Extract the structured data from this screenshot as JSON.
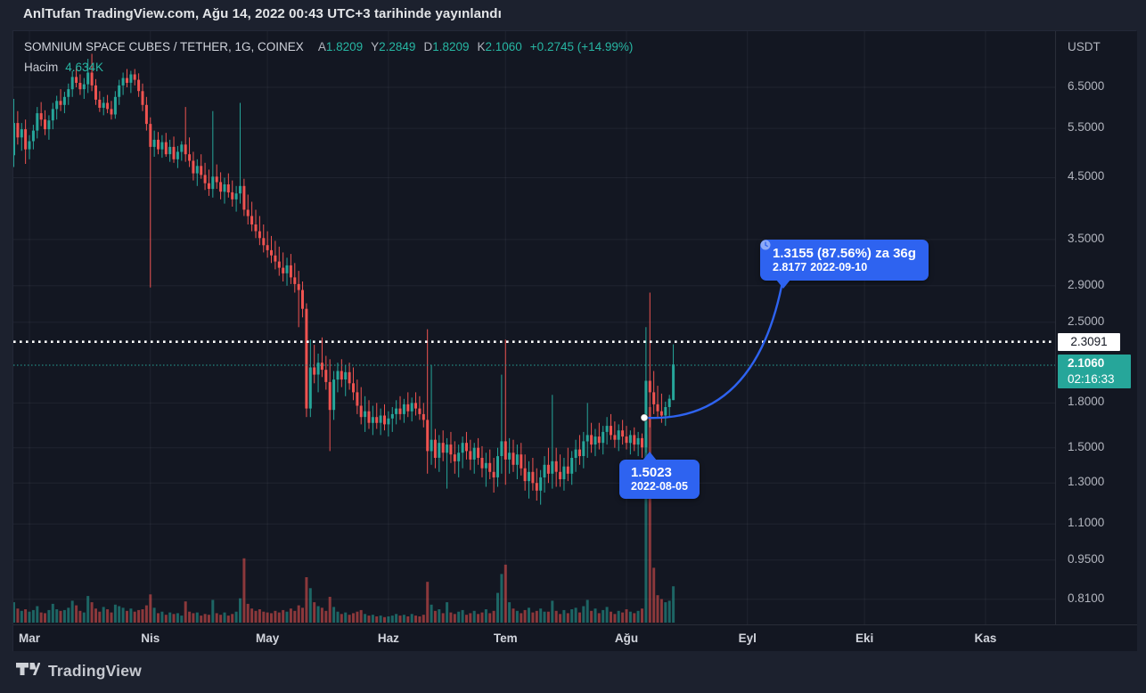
{
  "page": {
    "watermark": "AnlTufan TradingView.com, Ağu 14, 2022 00:43 UTC+3 tarihinde yayınlandı"
  },
  "colors": {
    "up": "#26a69a",
    "down": "#ef5350",
    "vol_up": "rgba(38,166,154,0.55)",
    "vol_down": "rgba(239,83,80,0.55)",
    "accent_blue": "#2e63f0",
    "grid": "rgba(240,243,250,0.06)",
    "chart_bg": "#131722",
    "outer_bg": "#1c212e",
    "alert_line": "#ffffff",
    "current_line": "#26a69a",
    "axis_text": "#b2b5be"
  },
  "legend": {
    "symbol": "SOMNIUM SPACE CUBES / TETHER, 1G, COINEX",
    "o_label": "A",
    "o": "1.8209",
    "h_label": "Y",
    "h": "2.2849",
    "l_label": "D",
    "l": "1.8209",
    "c_label": "K",
    "c": "2.1060",
    "change": "+0.2745 (+14.99%)",
    "volume_label": "Hacim",
    "volume_value": "4.634K"
  },
  "price_axis": {
    "unit_label": "USDT",
    "ticks": [
      "6.5000",
      "5.5000",
      "4.5000",
      "3.5000",
      "2.9000",
      "2.5000",
      "1.8000",
      "1.5000",
      "1.3000",
      "1.1000",
      "0.9500",
      "0.8100"
    ],
    "alert_badge": "2.3091",
    "current_badge": "2.1060",
    "countdown": "02:16:33"
  },
  "time_axis": {
    "months": [
      "Mar",
      "Nis",
      "May",
      "Haz",
      "Tem",
      "Ağu",
      "Eyl",
      "Eki",
      "Kas"
    ]
  },
  "annotations": {
    "alert_price": 2.3091,
    "current_price": 2.106,
    "target_callout": {
      "line1": "1.3155 (87.56%) za 36g",
      "price": "2.8177",
      "date": "2022-09-10"
    },
    "start_callout": {
      "price": "1.5023",
      "date": "2022-08-05"
    },
    "arrow_points": [
      {
        "price": 1.5023,
        "date": "2022-08-05"
      },
      {
        "price": 2.8177,
        "date": "2022-09-10"
      }
    ]
  },
  "footer": {
    "brand": "TradingView"
  },
  "chart_data": {
    "type": "candlestick+volume",
    "symbol": "SOMNIUM SPACE CUBES / TETHER",
    "interval": "1G",
    "exchange": "COINEX",
    "price_scale": "log",
    "ylim": [
      0.75,
      7.5
    ],
    "volume_max": 27500,
    "start_date": "2022-02-25",
    "end_date": "2022-08-13",
    "ohlc_format": "[open, high, low, close, volume]",
    "candles": [
      [
        4.93,
        6.2,
        4.7,
        5.62,
        2600
      ],
      [
        5.62,
        5.9,
        5.15,
        5.3,
        1800
      ],
      [
        5.3,
        5.62,
        5.02,
        5.48,
        1500
      ],
      [
        5.48,
        5.7,
        4.76,
        5.05,
        1700
      ],
      [
        5.05,
        5.35,
        4.85,
        5.22,
        1400
      ],
      [
        5.22,
        5.58,
        5.05,
        5.45,
        1600
      ],
      [
        5.45,
        6.0,
        5.28,
        5.85,
        2100
      ],
      [
        5.85,
        6.12,
        5.55,
        5.7,
        1300
      ],
      [
        5.7,
        5.92,
        5.35,
        5.48,
        1200
      ],
      [
        5.48,
        5.8,
        5.25,
        5.68,
        1600
      ],
      [
        5.68,
        6.1,
        5.48,
        5.95,
        2400
      ],
      [
        5.95,
        6.28,
        5.7,
        6.15,
        1700
      ],
      [
        6.15,
        6.45,
        5.9,
        6.05,
        1500
      ],
      [
        6.05,
        6.38,
        5.85,
        6.25,
        1600
      ],
      [
        6.25,
        6.6,
        6.05,
        6.45,
        1900
      ],
      [
        6.45,
        6.95,
        6.25,
        6.78,
        2800
      ],
      [
        6.78,
        7.05,
        6.5,
        6.62,
        2200
      ],
      [
        6.62,
        6.85,
        6.3,
        6.45,
        1500
      ],
      [
        6.45,
        6.75,
        6.2,
        6.58,
        1300
      ],
      [
        6.58,
        7.3,
        6.35,
        6.9,
        3400
      ],
      [
        6.9,
        7.45,
        6.4,
        6.55,
        2600
      ],
      [
        6.55,
        6.72,
        6.05,
        6.18,
        1800
      ],
      [
        6.18,
        6.4,
        5.88,
        5.98,
        1400
      ],
      [
        5.98,
        6.25,
        5.8,
        6.1,
        2000
      ],
      [
        6.1,
        6.3,
        5.85,
        5.95,
        1700
      ],
      [
        5.95,
        6.15,
        5.7,
        5.82,
        1300
      ],
      [
        5.82,
        6.4,
        5.72,
        6.25,
        2300
      ],
      [
        6.25,
        6.7,
        6.05,
        6.55,
        2100
      ],
      [
        6.55,
        6.9,
        6.3,
        6.75,
        1900
      ],
      [
        6.75,
        7.0,
        6.5,
        6.62,
        1500
      ],
      [
        6.62,
        6.95,
        6.35,
        6.85,
        1800
      ],
      [
        6.85,
        7.0,
        6.55,
        6.7,
        1400
      ],
      [
        6.7,
        6.88,
        6.25,
        6.4,
        1600
      ],
      [
        6.4,
        6.6,
        5.9,
        6.05,
        1700
      ],
      [
        6.05,
        6.25,
        5.45,
        5.6,
        2200
      ],
      [
        5.6,
        5.75,
        2.88,
        5.1,
        3600
      ],
      [
        5.1,
        5.45,
        4.9,
        5.25,
        1900
      ],
      [
        5.25,
        5.42,
        4.95,
        5.05,
        1200
      ],
      [
        5.05,
        5.35,
        4.88,
        5.2,
        1400
      ],
      [
        5.2,
        5.4,
        4.9,
        4.95,
        1000
      ],
      [
        4.95,
        5.25,
        4.8,
        5.1,
        1300
      ],
      [
        5.1,
        5.32,
        4.78,
        4.85,
        1100
      ],
      [
        4.85,
        5.12,
        4.68,
        5.0,
        1200
      ],
      [
        5.0,
        5.22,
        4.82,
        5.15,
        900
      ],
      [
        5.15,
        6.0,
        4.8,
        4.95,
        2700
      ],
      [
        4.95,
        5.3,
        4.7,
        4.82,
        1400
      ],
      [
        4.82,
        5.0,
        4.45,
        4.58,
        1200
      ],
      [
        4.58,
        4.85,
        4.35,
        4.72,
        1300
      ],
      [
        4.72,
        4.95,
        4.48,
        4.55,
        900
      ],
      [
        4.55,
        4.78,
        4.28,
        4.4,
        1100
      ],
      [
        4.4,
        4.65,
        4.18,
        4.3,
        1000
      ],
      [
        4.3,
        5.9,
        4.15,
        4.52,
        2900
      ],
      [
        4.52,
        4.75,
        4.3,
        4.42,
        1200
      ],
      [
        4.42,
        4.6,
        4.12,
        4.25,
        1000
      ],
      [
        4.25,
        4.5,
        4.05,
        4.38,
        1300
      ],
      [
        4.38,
        4.58,
        4.15,
        4.24,
        900
      ],
      [
        4.24,
        4.45,
        4.0,
        4.12,
        1100
      ],
      [
        4.12,
        4.35,
        3.92,
        4.22,
        1400
      ],
      [
        4.22,
        6.1,
        4.05,
        4.35,
        3100
      ],
      [
        4.35,
        4.48,
        3.85,
        3.95,
        8200
      ],
      [
        3.95,
        4.2,
        3.72,
        3.85,
        2400
      ],
      [
        3.85,
        4.08,
        3.62,
        3.72,
        1800
      ],
      [
        3.72,
        3.95,
        3.52,
        3.62,
        1500
      ],
      [
        3.62,
        3.85,
        3.42,
        3.52,
        1700
      ],
      [
        3.52,
        3.72,
        3.32,
        3.42,
        1400
      ],
      [
        3.42,
        3.62,
        3.25,
        3.35,
        1300
      ],
      [
        3.35,
        3.55,
        3.18,
        3.28,
        1200
      ],
      [
        3.28,
        3.48,
        3.1,
        3.2,
        1500
      ],
      [
        3.2,
        3.4,
        3.02,
        3.12,
        1300
      ],
      [
        3.12,
        3.32,
        2.95,
        3.05,
        1600
      ],
      [
        3.05,
        3.25,
        2.9,
        3.15,
        1400
      ],
      [
        3.15,
        3.3,
        2.92,
        3.0,
        1800
      ],
      [
        3.0,
        3.18,
        2.82,
        2.92,
        1500
      ],
      [
        2.92,
        3.08,
        2.45,
        2.85,
        2200
      ],
      [
        2.85,
        2.95,
        2.55,
        2.64,
        1900
      ],
      [
        2.64,
        2.7,
        1.7,
        1.76,
        5800
      ],
      [
        1.76,
        2.33,
        1.7,
        2.08,
        4400
      ],
      [
        2.08,
        2.28,
        1.95,
        2.02,
        2600
      ],
      [
        2.02,
        2.2,
        1.88,
        2.12,
        2100
      ],
      [
        2.12,
        2.35,
        2.0,
        2.06,
        1900
      ],
      [
        2.06,
        2.18,
        1.9,
        1.96,
        1500
      ],
      [
        1.96,
        2.15,
        1.48,
        1.75,
        3300
      ],
      [
        1.75,
        2.05,
        1.68,
        1.98,
        2000
      ],
      [
        1.98,
        2.12,
        1.88,
        2.05,
        1400
      ],
      [
        2.05,
        2.15,
        1.92,
        1.98,
        1100
      ],
      [
        1.98,
        2.1,
        1.85,
        2.04,
        1300
      ],
      [
        2.04,
        2.12,
        1.9,
        1.95,
        1000
      ],
      [
        1.95,
        2.08,
        1.82,
        1.88,
        1200
      ],
      [
        1.88,
        1.98,
        1.72,
        1.78,
        1400
      ],
      [
        1.78,
        1.92,
        1.65,
        1.7,
        1600
      ],
      [
        1.7,
        1.85,
        1.6,
        1.74,
        1100
      ],
      [
        1.74,
        1.82,
        1.62,
        1.66,
        900
      ],
      [
        1.66,
        1.78,
        1.58,
        1.7,
        1000
      ],
      [
        1.7,
        1.8,
        1.62,
        1.66,
        800
      ],
      [
        1.66,
        1.76,
        1.58,
        1.71,
        900
      ],
      [
        1.71,
        1.79,
        1.61,
        1.65,
        700
      ],
      [
        1.65,
        1.74,
        1.57,
        1.69,
        800
      ],
      [
        1.69,
        1.77,
        1.6,
        1.72,
        900
      ],
      [
        1.72,
        1.82,
        1.65,
        1.76,
        1100
      ],
      [
        1.76,
        1.85,
        1.68,
        1.72,
        900
      ],
      [
        1.72,
        1.83,
        1.66,
        1.79,
        1000
      ],
      [
        1.79,
        1.88,
        1.7,
        1.74,
        800
      ],
      [
        1.74,
        1.84,
        1.67,
        1.8,
        1100
      ],
      [
        1.8,
        1.88,
        1.71,
        1.76,
        900
      ],
      [
        1.76,
        1.85,
        1.68,
        1.72,
        800
      ],
      [
        1.72,
        1.8,
        1.63,
        1.68,
        1000
      ],
      [
        1.68,
        2.43,
        1.35,
        1.48,
        5200
      ],
      [
        1.48,
        2.1,
        1.4,
        1.55,
        2300
      ],
      [
        1.55,
        1.62,
        1.38,
        1.44,
        1500
      ],
      [
        1.44,
        1.58,
        1.36,
        1.53,
        1700
      ],
      [
        1.53,
        1.61,
        1.42,
        1.47,
        1200
      ],
      [
        1.47,
        1.56,
        1.27,
        1.52,
        2600
      ],
      [
        1.52,
        1.6,
        1.41,
        1.46,
        1300
      ],
      [
        1.46,
        1.54,
        1.35,
        1.42,
        1100
      ],
      [
        1.42,
        1.52,
        1.33,
        1.47,
        1400
      ],
      [
        1.47,
        1.57,
        1.38,
        1.53,
        1600
      ],
      [
        1.53,
        1.6,
        1.43,
        1.48,
        1000
      ],
      [
        1.48,
        1.55,
        1.37,
        1.43,
        1200
      ],
      [
        1.43,
        1.53,
        1.35,
        1.5,
        1500
      ],
      [
        1.5,
        1.56,
        1.4,
        1.44,
        1100
      ],
      [
        1.44,
        1.51,
        1.33,
        1.38,
        1300
      ],
      [
        1.38,
        1.47,
        1.28,
        1.41,
        1700
      ],
      [
        1.41,
        1.49,
        1.32,
        1.36,
        1200
      ],
      [
        1.36,
        1.44,
        1.25,
        1.33,
        1500
      ],
      [
        1.33,
        1.5,
        1.28,
        1.45,
        3800
      ],
      [
        1.45,
        2.02,
        1.35,
        1.54,
        6200
      ],
      [
        1.54,
        2.33,
        1.29,
        1.43,
        7400
      ],
      [
        1.43,
        1.56,
        1.35,
        1.47,
        2600
      ],
      [
        1.47,
        1.55,
        1.36,
        1.4,
        1800
      ],
      [
        1.4,
        1.52,
        1.32,
        1.46,
        1500
      ],
      [
        1.46,
        1.53,
        1.34,
        1.38,
        1200
      ],
      [
        1.38,
        1.46,
        1.26,
        1.31,
        1600
      ],
      [
        1.31,
        1.42,
        1.22,
        1.36,
        1900
      ],
      [
        1.36,
        1.44,
        1.26,
        1.3,
        1300
      ],
      [
        1.3,
        1.38,
        1.21,
        1.26,
        1500
      ],
      [
        1.26,
        1.37,
        1.19,
        1.33,
        1800
      ],
      [
        1.33,
        1.45,
        1.25,
        1.4,
        1400
      ],
      [
        1.4,
        1.5,
        1.3,
        1.35,
        1400
      ],
      [
        1.35,
        1.86,
        1.27,
        1.42,
        2800
      ],
      [
        1.42,
        1.5,
        1.28,
        1.36,
        1500
      ],
      [
        1.36,
        1.46,
        1.28,
        1.32,
        1100
      ],
      [
        1.32,
        1.44,
        1.26,
        1.39,
        1600
      ],
      [
        1.39,
        1.5,
        1.31,
        1.35,
        1200
      ],
      [
        1.35,
        1.48,
        1.29,
        1.44,
        1700
      ],
      [
        1.44,
        1.55,
        1.36,
        1.49,
        1900
      ],
      [
        1.49,
        1.58,
        1.4,
        1.45,
        1300
      ],
      [
        1.45,
        1.6,
        1.38,
        1.54,
        2100
      ],
      [
        1.54,
        1.8,
        1.44,
        1.58,
        2900
      ],
      [
        1.58,
        1.66,
        1.47,
        1.52,
        1500
      ],
      [
        1.52,
        1.62,
        1.45,
        1.57,
        1800
      ],
      [
        1.57,
        1.66,
        1.49,
        1.53,
        1200
      ],
      [
        1.53,
        1.64,
        1.46,
        1.6,
        1600
      ],
      [
        1.6,
        1.7,
        1.52,
        1.64,
        2000
      ],
      [
        1.64,
        1.72,
        1.55,
        1.58,
        1400
      ],
      [
        1.58,
        1.67,
        1.5,
        1.55,
        1100
      ],
      [
        1.55,
        1.65,
        1.48,
        1.61,
        1500
      ],
      [
        1.61,
        1.68,
        1.52,
        1.57,
        1300
      ],
      [
        1.57,
        1.64,
        1.49,
        1.53,
        1700
      ],
      [
        1.53,
        1.61,
        1.46,
        1.58,
        1400
      ],
      [
        1.58,
        1.63,
        1.48,
        1.52,
        1200
      ],
      [
        1.52,
        1.6,
        1.45,
        1.56,
        1500
      ],
      [
        1.56,
        1.59,
        1.44,
        1.5023,
        1800
      ],
      [
        1.5023,
        2.45,
        1.47,
        1.97,
        24000
      ],
      [
        1.97,
        2.82,
        1.63,
        1.88,
        27500
      ],
      [
        1.88,
        2.05,
        1.72,
        1.79,
        7000
      ],
      [
        1.79,
        1.93,
        1.7,
        1.74,
        3500
      ],
      [
        1.74,
        1.87,
        1.66,
        1.71,
        3000
      ],
      [
        1.71,
        1.81,
        1.64,
        1.77,
        2600
      ],
      [
        1.77,
        1.86,
        1.7,
        1.8315,
        2800
      ],
      [
        1.8209,
        2.2849,
        1.8209,
        2.106,
        4634
      ]
    ]
  }
}
